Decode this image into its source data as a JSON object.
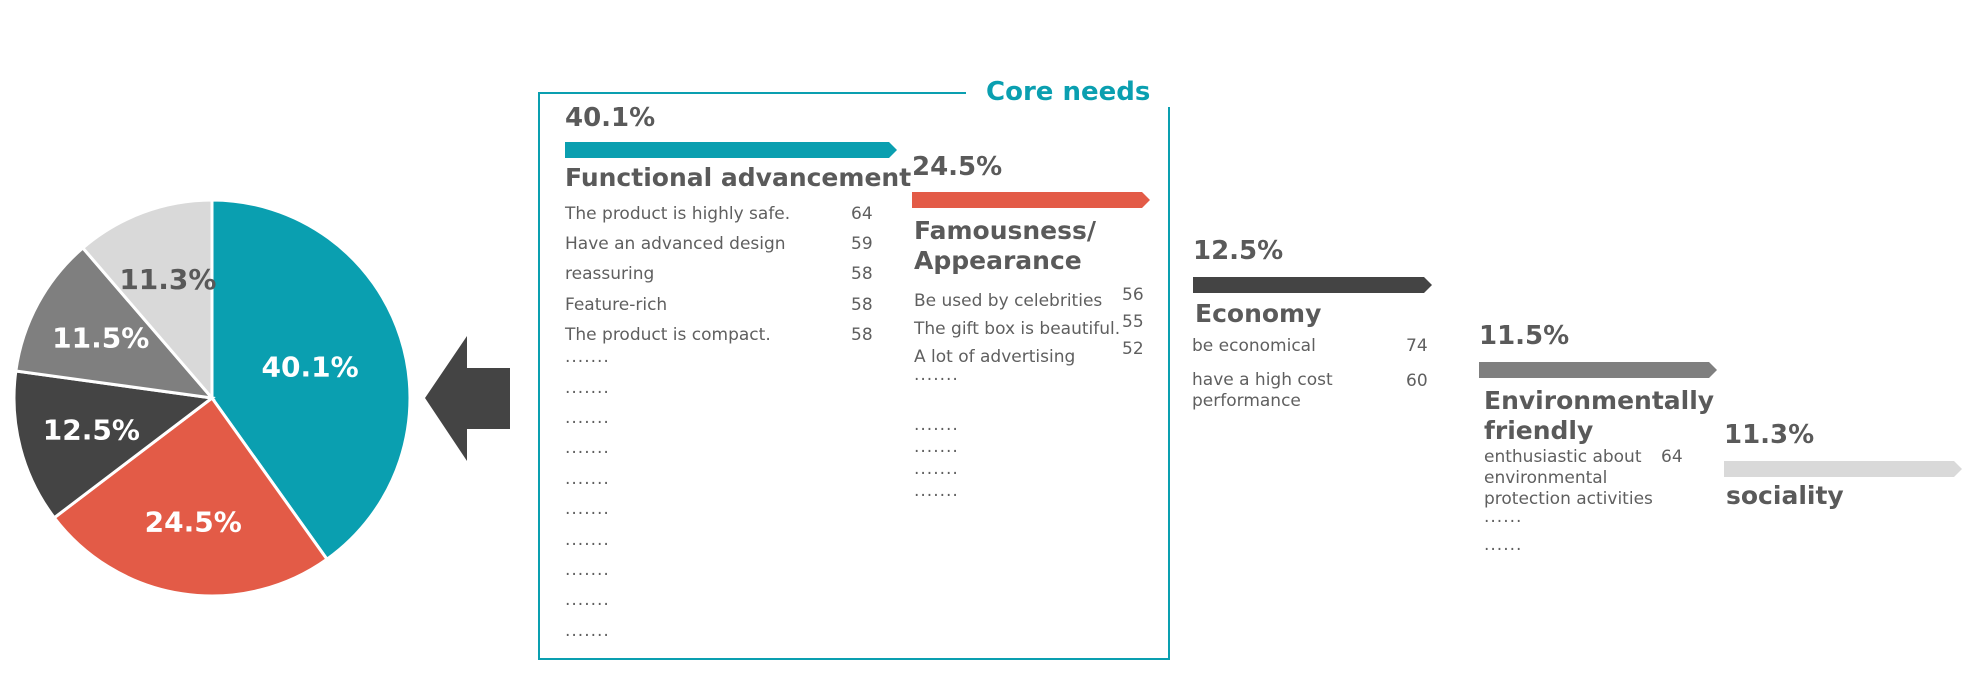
{
  "chart_data": {
    "type": "pie",
    "slices": [
      {
        "label": "40.1%",
        "value": 40.1,
        "color": "#0a9fb0"
      },
      {
        "label": "24.5%",
        "value": 24.5,
        "color": "#e35b47"
      },
      {
        "label": "12.5%",
        "value": 12.5,
        "color": "#444444"
      },
      {
        "label": "11.5%",
        "value": 11.5,
        "color": "#7f7f7f"
      },
      {
        "label": "11.3%",
        "value": 11.3,
        "color": "#d9d9d9"
      }
    ]
  },
  "core_needs_title": "Core needs",
  "categories": [
    {
      "percent": "40.1%",
      "title": "Functional advancement",
      "color": "#0a9fb0",
      "items": [
        {
          "text": "The product is highly safe.",
          "value": "64"
        },
        {
          "text": "Have an advanced design",
          "value": "59"
        },
        {
          "text": "reassuring",
          "value": "58"
        },
        {
          "text": "Feature-rich",
          "value": "58"
        },
        {
          "text": "The product is compact.",
          "value": "58"
        }
      ],
      "dots": [
        "·······",
        "·······",
        "·······",
        "·······",
        "·······",
        "·······",
        "·······",
        "·······",
        "·······",
        "·······"
      ]
    },
    {
      "percent": "24.5%",
      "title_line1": "Famousness/",
      "title_line2": "Appearance",
      "color": "#e35b47",
      "items": [
        {
          "text": "Be used by celebrities",
          "value": "56"
        },
        {
          "text": "The gift box is beautiful.",
          "value": "55"
        },
        {
          "text": "A lot of advertising",
          "value": "52"
        }
      ],
      "dots": [
        "·······",
        "·······",
        "·······",
        "·······",
        "·······"
      ]
    },
    {
      "percent": "12.5%",
      "title": "Economy",
      "color": "#444444",
      "items": [
        {
          "text": "be economical",
          "value": "74"
        },
        {
          "text": "have a high cost performance",
          "value": "60"
        }
      ]
    },
    {
      "percent": "11.5%",
      "title_line1": "Environmentally",
      "title_line2": "friendly",
      "color": "#7f7f7f",
      "items": [
        {
          "text": "enthusiastic about environmental protection activities",
          "value": "64"
        }
      ],
      "dots": [
        "······",
        "······"
      ]
    },
    {
      "percent": "11.3%",
      "title": "sociality",
      "color": "#d9d9d9"
    }
  ]
}
